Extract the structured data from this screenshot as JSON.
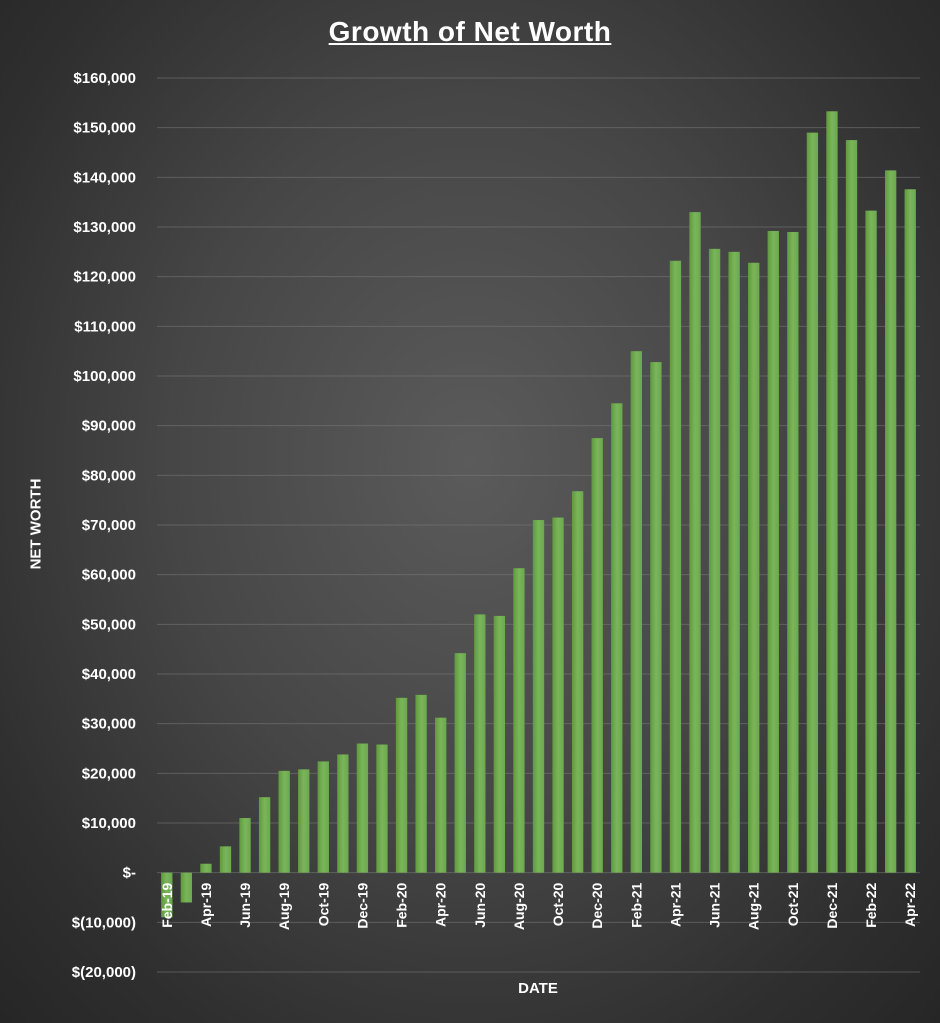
{
  "chart_data": {
    "type": "bar",
    "title": "Growth of Net Worth",
    "xlabel": "DATE",
    "ylabel": "NET WORTH",
    "ylim": [
      -20000,
      160000
    ],
    "yticks": [
      160000,
      150000,
      140000,
      130000,
      120000,
      110000,
      100000,
      90000,
      80000,
      70000,
      60000,
      50000,
      40000,
      30000,
      20000,
      10000,
      0,
      -10000,
      -20000
    ],
    "ytick_labels": [
      "$160,000",
      "$150,000",
      "$140,000",
      "$130,000",
      "$120,000",
      "$110,000",
      "$100,000",
      "$90,000",
      "$80,000",
      "$70,000",
      "$60,000",
      "$50,000",
      "$40,000",
      "$30,000",
      "$20,000",
      "$10,000",
      "$-",
      "$(10,000)",
      "$(20,000)"
    ],
    "categories": [
      "Feb-19",
      "Mar-19",
      "Apr-19",
      "May-19",
      "Jun-19",
      "Jul-19",
      "Aug-19",
      "Sep-19",
      "Oct-19",
      "Nov-19",
      "Dec-19",
      "Jan-20",
      "Feb-20",
      "Mar-20",
      "Apr-20",
      "May-20",
      "Jun-20",
      "Jul-20",
      "Aug-20",
      "Sep-20",
      "Oct-20",
      "Nov-20",
      "Dec-20",
      "Jan-21",
      "Feb-21",
      "Mar-21",
      "Apr-21",
      "May-21",
      "Jun-21",
      "Jul-21",
      "Aug-21",
      "Sep-21",
      "Oct-21",
      "Nov-21",
      "Dec-21",
      "Jan-22",
      "Feb-22",
      "Mar-22",
      "Apr-22"
    ],
    "xtick_labels": [
      "Feb-19",
      "Apr-19",
      "Jun-19",
      "Aug-19",
      "Oct-19",
      "Dec-19",
      "Feb-20",
      "Apr-20",
      "Jun-20",
      "Aug-20",
      "Oct-20",
      "Dec-20",
      "Feb-21",
      "Apr-21",
      "Jun-21",
      "Aug-21",
      "Oct-21",
      "Dec-21",
      "Feb-22",
      "Apr-22"
    ],
    "values": [
      -9000,
      -6000,
      1800,
      5300,
      11000,
      15200,
      20500,
      20800,
      22400,
      23800,
      26000,
      25800,
      35200,
      35800,
      31200,
      44200,
      52000,
      51700,
      61300,
      71000,
      71500,
      76800,
      87500,
      94500,
      105000,
      102800,
      123200,
      133000,
      125600,
      125000,
      122800,
      129200,
      129000,
      149000,
      153300,
      147500,
      133300,
      141400,
      137600
    ],
    "grid": true,
    "bar_color": "#6aa84f"
  }
}
